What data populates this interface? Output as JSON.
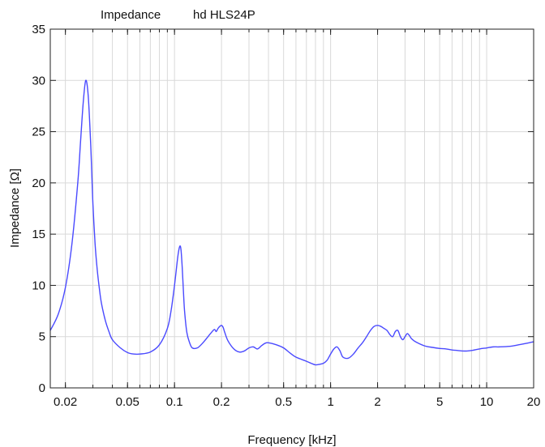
{
  "chart_data": {
    "type": "line",
    "title_left": "Impedance",
    "title_right": "hd HLS24P",
    "xlabel": "Frequency [kHz]",
    "ylabel": "Impedance [Ω]",
    "x_scale": "log",
    "xlim": [
      0.016,
      20
    ],
    "ylim": [
      0,
      35
    ],
    "grid": true,
    "line_color": "#4a4aff",
    "x_ticks": [
      {
        "value": 0.02,
        "label": "0.02"
      },
      {
        "value": 0.05,
        "label": "0.05"
      },
      {
        "value": 0.1,
        "label": "0.1"
      },
      {
        "value": 0.2,
        "label": "0.2"
      },
      {
        "value": 0.5,
        "label": "0.5"
      },
      {
        "value": 1,
        "label": "1"
      },
      {
        "value": 2,
        "label": "2"
      },
      {
        "value": 5,
        "label": "5"
      },
      {
        "value": 10,
        "label": "10"
      },
      {
        "value": 20,
        "label": "20"
      }
    ],
    "y_ticks": [
      {
        "value": 0,
        "label": "0"
      },
      {
        "value": 5,
        "label": "5"
      },
      {
        "value": 10,
        "label": "10"
      },
      {
        "value": 15,
        "label": "15"
      },
      {
        "value": 20,
        "label": "20"
      },
      {
        "value": 25,
        "label": "25"
      },
      {
        "value": 30,
        "label": "30"
      },
      {
        "value": 35,
        "label": "35"
      }
    ],
    "series": [
      {
        "x": [
          0.016,
          0.018,
          0.02,
          0.022,
          0.024,
          0.025,
          0.026,
          0.027,
          0.028,
          0.029,
          0.0295,
          0.03,
          0.031,
          0.032,
          0.033,
          0.034,
          0.036,
          0.038,
          0.04,
          0.045,
          0.05,
          0.055,
          0.06,
          0.07,
          0.08,
          0.09,
          0.095,
          0.1,
          0.105,
          0.108,
          0.11,
          0.112,
          0.114,
          0.116,
          0.12,
          0.125,
          0.13,
          0.14,
          0.15,
          0.16,
          0.17,
          0.18,
          0.185,
          0.19,
          0.195,
          0.2,
          0.205,
          0.21,
          0.22,
          0.24,
          0.26,
          0.28,
          0.3,
          0.32,
          0.34,
          0.36,
          0.38,
          0.4,
          0.45,
          0.5,
          0.55,
          0.6,
          0.7,
          0.75,
          0.8,
          0.85,
          0.9,
          0.95,
          1.0,
          1.05,
          1.1,
          1.15,
          1.2,
          1.3,
          1.4,
          1.5,
          1.6,
          1.7,
          1.8,
          1.9,
          2.0,
          2.1,
          2.2,
          2.3,
          2.4,
          2.5,
          2.6,
          2.7,
          2.8,
          2.9,
          3.0,
          3.1,
          3.2,
          3.3,
          3.5,
          4.0,
          4.5,
          5.0,
          5.5,
          6.0,
          6.5,
          7.0,
          7.5,
          8.0,
          9.0,
          10.0,
          11.0,
          12.0,
          14.0,
          16.0,
          18.0,
          20.0
        ],
        "y": [
          5.6,
          7.2,
          9.8,
          14.0,
          20.0,
          24.0,
          27.8,
          30.0,
          28.5,
          24.0,
          21.0,
          18.0,
          14.0,
          11.5,
          9.7,
          8.3,
          6.6,
          5.5,
          4.7,
          3.9,
          3.45,
          3.3,
          3.3,
          3.5,
          4.2,
          5.8,
          7.5,
          10.0,
          12.8,
          13.8,
          13.5,
          11.8,
          9.5,
          7.5,
          5.4,
          4.4,
          3.9,
          3.9,
          4.3,
          4.8,
          5.3,
          5.7,
          5.5,
          5.8,
          6.0,
          6.1,
          5.9,
          5.4,
          4.6,
          3.8,
          3.5,
          3.6,
          3.9,
          4.0,
          3.8,
          4.1,
          4.35,
          4.4,
          4.2,
          3.9,
          3.4,
          3.0,
          2.6,
          2.4,
          2.25,
          2.3,
          2.4,
          2.7,
          3.3,
          3.8,
          4.0,
          3.6,
          3.0,
          2.9,
          3.3,
          3.9,
          4.4,
          5.0,
          5.6,
          6.0,
          6.1,
          6.0,
          5.8,
          5.6,
          5.2,
          5.0,
          5.5,
          5.6,
          5.0,
          4.7,
          5.0,
          5.3,
          5.1,
          4.8,
          4.5,
          4.1,
          3.95,
          3.85,
          3.8,
          3.7,
          3.65,
          3.6,
          3.6,
          3.65,
          3.8,
          3.9,
          4.0,
          4.0,
          4.05,
          4.2,
          4.35,
          4.5
        ]
      }
    ]
  }
}
